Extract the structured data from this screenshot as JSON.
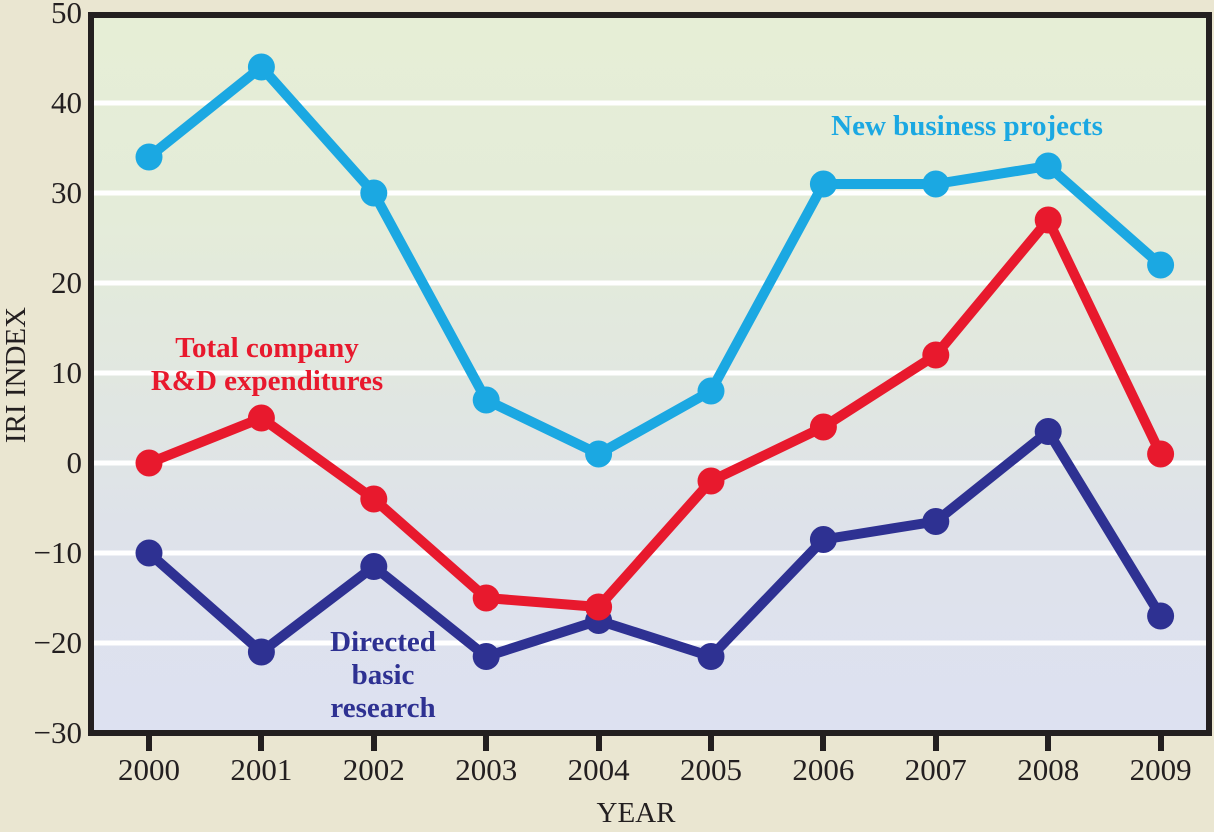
{
  "chart_data": {
    "type": "line",
    "title": "",
    "xlabel": "YEAR",
    "ylabel": "IRI INDEX",
    "x": [
      2000,
      2001,
      2002,
      2003,
      2004,
      2005,
      2006,
      2007,
      2008,
      2009
    ],
    "x_labels": [
      "2000",
      "2001",
      "2002",
      "2003",
      "2004",
      "2005",
      "2006",
      "2007",
      "2008",
      "2009"
    ],
    "ylim": [
      -30,
      50
    ],
    "y_ticks": [
      50,
      40,
      30,
      20,
      10,
      0,
      -10,
      -20,
      -30
    ],
    "y_tick_labels": [
      "50",
      "40",
      "30",
      "20",
      "10",
      "0",
      "−10",
      "−20",
      "−30"
    ],
    "grid": "horizontal-white-lines-every-10",
    "legend_position": "inline-annotations",
    "series": [
      {
        "name": "New business projects",
        "color": "#1ba8e2",
        "values": [
          34,
          44,
          30,
          7,
          1,
          8,
          31,
          31,
          33,
          22
        ]
      },
      {
        "name": "Total company R&D expenditures",
        "color": "#e8192d",
        "values": [
          0,
          5,
          -4,
          -15,
          -16,
          -2,
          4,
          12,
          27,
          1
        ]
      },
      {
        "name": "Directed basic research",
        "color": "#2e3192",
        "values": [
          -10,
          -21,
          -11.5,
          -21.5,
          -17.5,
          -21.5,
          -8.5,
          -6.5,
          3.5,
          -17
        ]
      }
    ]
  },
  "labels": {
    "new_business": "New business projects",
    "total_company": "Total company\nR&D expenditures",
    "directed_basic": "Directed\nbasic\nresearch",
    "x_axis": "YEAR",
    "y_axis": "IRI INDEX"
  },
  "colors": {
    "cyan_series": "#1ba8e2",
    "red_series": "#e8192d",
    "navy_series": "#2e3192",
    "axis_black": "#231f20",
    "gridline_white": "#ffffff",
    "outer_background": "#eae6d1",
    "plot_gradient_top": "#e6eed6",
    "plot_gradient_bottom": "#dde1f1"
  }
}
